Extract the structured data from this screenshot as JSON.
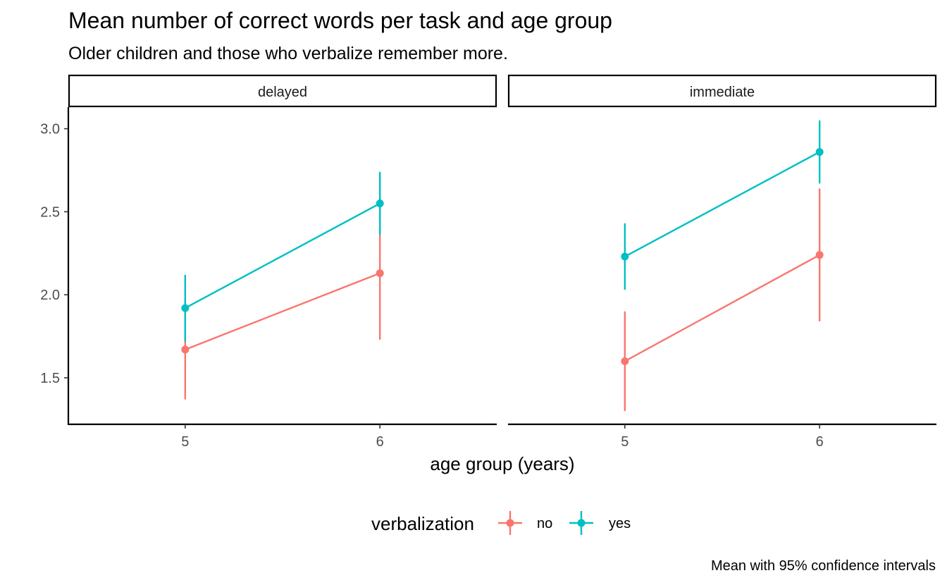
{
  "chart_data": {
    "type": "line",
    "title": "Mean number of correct words per task and age group",
    "subtitle": "Older children and those who verbalize remember more.",
    "xlabel": "age group (years)",
    "ylabel": "",
    "caption": "Mean with 95% confidence intervals",
    "x": [
      "5",
      "6"
    ],
    "y_ticks": [
      "1.5",
      "2.0",
      "2.5",
      "3.0"
    ],
    "ylim": [
      1.22,
      3.13
    ],
    "grid": false,
    "legend_position": "bottom",
    "legend_title": "verbalization",
    "facets": [
      {
        "label": "delayed",
        "series": [
          {
            "name": "no",
            "values": [
              1.67,
              2.13
            ],
            "lower": [
              1.37,
              1.73
            ],
            "upper": [
              1.97,
              2.53
            ]
          },
          {
            "name": "yes",
            "values": [
              1.92,
              2.55
            ],
            "lower": [
              1.72,
              2.36
            ],
            "upper": [
              2.12,
              2.74
            ]
          }
        ]
      },
      {
        "label": "immediate",
        "series": [
          {
            "name": "no",
            "values": [
              1.6,
              2.24
            ],
            "lower": [
              1.3,
              1.84
            ],
            "upper": [
              1.9,
              2.64
            ]
          },
          {
            "name": "yes",
            "values": [
              2.23,
              2.86
            ],
            "lower": [
              2.03,
              2.67
            ],
            "upper": [
              2.43,
              3.05
            ]
          }
        ]
      }
    ],
    "colors": {
      "no": "#F8766D",
      "yes": "#00BFC4"
    }
  }
}
